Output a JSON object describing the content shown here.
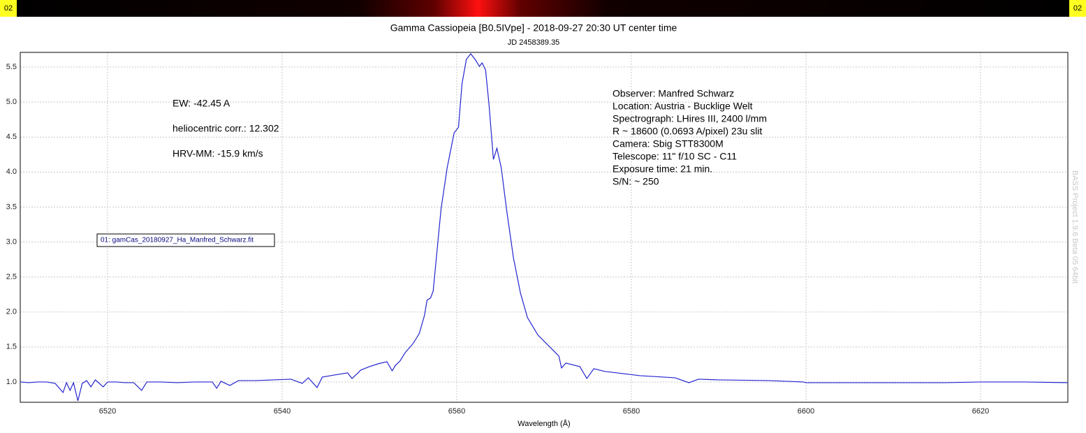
{
  "strip_labels": [
    "02",
    "02"
  ],
  "chart_data": {
    "type": "line",
    "title": "Gamma Cassiopeia [B0.5IVpe] - 2018-09-27 20:30 UT center time",
    "subtitle": "JD 2458389.35",
    "x_label": "Wavelength (Å)",
    "watermark": "BASS Project 1.9.6 Beta 05 64bit",
    "annotations_left": [
      "EW: -42.45 A",
      "heliocentric corr.: 12.302",
      "HRV-MM: -15.9 km/s"
    ],
    "annotations_right": [
      "Observer: Manfred Schwarz",
      "Location: Austria - Bucklige Welt",
      "Spectrograph: LHires III, 2400 l/mm",
      "R ~ 18600 (0.0693 A/pixel) 23u slit",
      "Camera: Sbig STT8300M",
      "Telescope: 11\" f/10 SC - C11",
      "Exposure time: 21 min.",
      "S/N:  ~ 250"
    ],
    "x": [
      6510,
      6511,
      6512,
      6513,
      6514,
      6514.9,
      6515.3,
      6515.7,
      6516.1,
      6516.6,
      6517.1,
      6517.6,
      6518.1,
      6518.6,
      6519.5,
      6520,
      6521,
      6522,
      6523,
      6523.9,
      6524.5,
      6526,
      6528,
      6530,
      6532,
      6532.5,
      6533,
      6534,
      6535,
      6537,
      6539,
      6541,
      6542.3,
      6543,
      6544,
      6544.6,
      6546,
      6547.5,
      6548,
      6548.6,
      6549,
      6550,
      6551,
      6552,
      6552.6,
      6553,
      6553.5,
      6554.1,
      6555,
      6555.7,
      6556.3,
      6556.6,
      6557,
      6557.3,
      6557.7,
      6558.2,
      6558.9,
      6559.7,
      6560.2,
      6560.6,
      6561.1,
      6561.6,
      6562.1,
      6562.6,
      6562.9,
      6563.3,
      6563.7,
      6564.2,
      6564.6,
      6565.1,
      6565.7,
      6566.5,
      6567.3,
      6568.1,
      6569.3,
      6570.9,
      6571.7,
      6572,
      6572.5,
      6574.1,
      6574.9,
      6575.7,
      6577,
      6579.7,
      6581,
      6583.7,
      6585,
      6586.6,
      6587.7,
      6590,
      6595.7,
      6599.7,
      6600,
      6603.7,
      6608,
      6612,
      6616,
      6620,
      6625,
      6630
    ],
    "series": [
      {
        "name": "01: gamCas_20180927_Ha_Manfred_Schwarz.fit",
        "color": "#2424d0",
        "values": [
          1.0,
          0.99,
          1.0,
          1.0,
          0.98,
          0.85,
          0.99,
          0.88,
          0.99,
          0.73,
          0.98,
          1.02,
          0.93,
          1.03,
          0.93,
          1.0,
          1.0,
          0.99,
          0.99,
          0.88,
          1.0,
          1.0,
          0.99,
          1.0,
          1.0,
          0.91,
          1.01,
          0.95,
          1.02,
          1.02,
          1.03,
          1.04,
          0.98,
          1.06,
          0.92,
          1.07,
          1.1,
          1.13,
          1.05,
          1.12,
          1.17,
          1.22,
          1.26,
          1.29,
          1.16,
          1.24,
          1.3,
          1.42,
          1.55,
          1.69,
          1.95,
          2.17,
          2.2,
          2.3,
          2.82,
          3.47,
          4.06,
          4.56,
          4.64,
          5.26,
          5.61,
          5.69,
          5.61,
          5.51,
          5.56,
          5.46,
          4.96,
          4.18,
          4.34,
          4.06,
          3.47,
          2.77,
          2.27,
          1.92,
          1.67,
          1.47,
          1.37,
          1.2,
          1.27,
          1.22,
          1.05,
          1.19,
          1.15,
          1.11,
          1.09,
          1.07,
          1.06,
          0.99,
          1.04,
          1.03,
          1.02,
          1.0,
          0.99,
          0.99,
          0.99,
          0.99,
          0.99,
          1.0,
          1.0,
          0.99
        ]
      }
    ],
    "xlim": [
      6510,
      6630
    ],
    "ylim": [
      0.71,
      5.71
    ],
    "xticks": [
      6520,
      6540,
      6560,
      6580,
      6600,
      6620
    ],
    "yticks": [
      {
        "value": 1,
        "label": "1.0"
      },
      {
        "value": 1.5,
        "label": "1.5"
      },
      {
        "value": 2,
        "label": "2.0"
      },
      {
        "value": 2.5,
        "label": "2.5"
      },
      {
        "value": 3,
        "label": "3.0"
      },
      {
        "value": 3.5,
        "label": "3.5"
      },
      {
        "value": 4,
        "label": "4.0"
      },
      {
        "value": 4.5,
        "label": "4.5"
      },
      {
        "value": 5,
        "label": "5.0"
      },
      {
        "value": 5.5,
        "label": "5.5"
      }
    ],
    "grid": true
  }
}
